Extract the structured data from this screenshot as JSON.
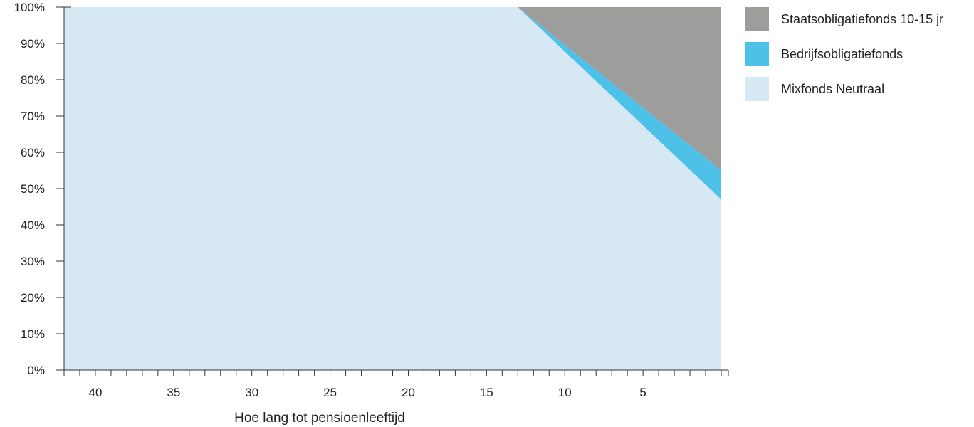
{
  "chart_data": {
    "type": "area",
    "stacked": true,
    "xlabel": "Hoe lang tot pensioenleeftijd",
    "ylabel": "",
    "x_reversed": true,
    "xlim": [
      42,
      0
    ],
    "ylim": [
      0,
      100
    ],
    "x_tick_labels": [
      40,
      35,
      30,
      25,
      20,
      15,
      10,
      5
    ],
    "y_tick_labels": [
      "0%",
      "10%",
      "20%",
      "30%",
      "40%",
      "50%",
      "60%",
      "70%",
      "80%",
      "90%",
      "100%"
    ],
    "x": [
      42,
      13,
      0
    ],
    "series": [
      {
        "name": "Mixfonds Neutraal",
        "color": "#d6e8f4",
        "values": [
          100,
          100,
          47
        ]
      },
      {
        "name": "Bedrijfsobligatiefonds",
        "color": "#4ec1e8",
        "values": [
          0,
          0,
          8
        ]
      },
      {
        "name": "Staatsobligatiefonds 10-15 jr",
        "color": "#9d9d9c",
        "values": [
          0,
          0,
          45
        ]
      }
    ],
    "legend_position": "right",
    "legend_order": [
      "Staatsobligatiefonds 10-15 jr",
      "Bedrijfsobligatiefonds",
      "Mixfonds Neutraal"
    ],
    "grid": false
  }
}
